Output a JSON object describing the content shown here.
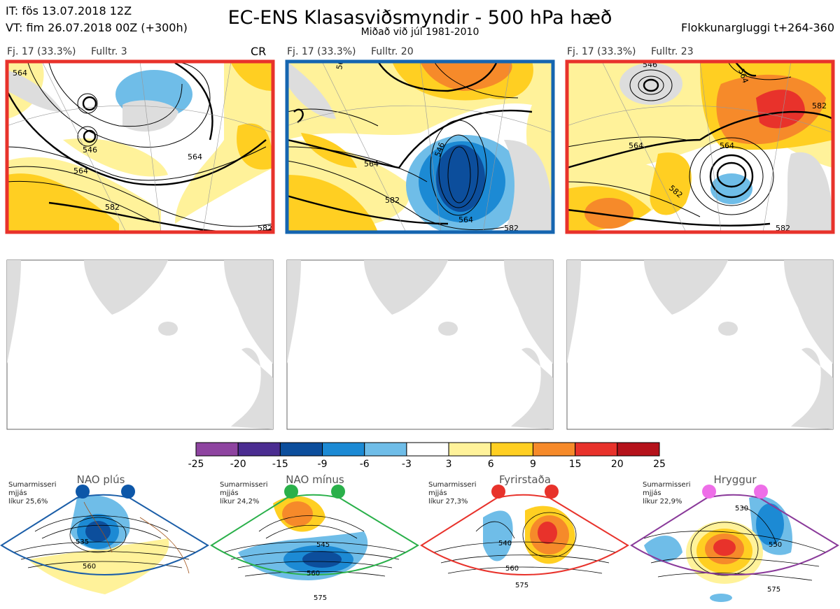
{
  "header": {
    "it_line": "IT: fös 13.07.2018 12Z",
    "vt_line": "VT: fim 26.07.2018 00Z  (+300h)",
    "title": "EC-ENS Klasasviðsmyndir - 500 hPa hæð",
    "subtitle": "Miðað við júl 1981-2010",
    "window": "Flokkunargluggi t+264-360"
  },
  "panels": [
    {
      "fj": "Fj. 17 (33.3%)",
      "fulltr": "Fulltr. 3",
      "extra": "CR",
      "border": "#e8322b",
      "labels": [
        "564",
        "564",
        "546",
        "564",
        "582",
        "582"
      ]
    },
    {
      "fj": "Fj. 17 (33.3%)",
      "fulltr": "Fulltr. 20",
      "extra": "",
      "border": "#1565b0",
      "labels": [
        "564",
        "546",
        "564",
        "582",
        "564",
        "582"
      ]
    },
    {
      "fj": "Fj. 17 (33.3%)",
      "fulltr": "Fulltr. 23",
      "extra": "",
      "border": "#e8322b",
      "labels": [
        "546",
        "564",
        "564",
        "582",
        "564",
        "582",
        "582"
      ]
    }
  ],
  "colorbar": {
    "ticks": [
      "-25",
      "-20",
      "-15",
      "-9",
      "-6",
      "-3",
      "3",
      "6",
      "9",
      "15",
      "20",
      "25"
    ],
    "colors": [
      "#8e44a0",
      "#4b2d91",
      "#0c4e9c",
      "#1c8ad4",
      "#6fbde8",
      "#ffffff",
      "#fff29a",
      "#ffcf22",
      "#f68a2a",
      "#e8322b",
      "#b5121b"
    ]
  },
  "regimes": [
    {
      "name": "NAO plús",
      "season": "Sumarmisseri",
      "smoothing": "mjjás",
      "prob": "líkur 25,6%",
      "dot": "#0d57a8",
      "frame": "#1b5ea8",
      "labels": [
        "535",
        "560"
      ]
    },
    {
      "name": "NAO mínus",
      "season": "Sumarmisseri",
      "smoothing": "mjjás",
      "prob": "líkur 24,2%",
      "dot": "#2ab04a",
      "frame": "#2ab04a",
      "labels": [
        "545",
        "560",
        "575"
      ]
    },
    {
      "name": "Fyrirstaða",
      "season": "Sumarmisseri",
      "smoothing": "mjjás",
      "prob": "líkur 27,3%",
      "dot": "#e8322b",
      "frame": "#e8322b",
      "labels": [
        "540",
        "560",
        "575"
      ]
    },
    {
      "name": "Hryggur",
      "season": "Sumarmisseri",
      "smoothing": "mjjás",
      "prob": "líkur 22,9%",
      "dot": "#ee6ee8",
      "frame": "#8a3a9a",
      "labels": [
        "530",
        "550",
        "575"
      ]
    }
  ]
}
